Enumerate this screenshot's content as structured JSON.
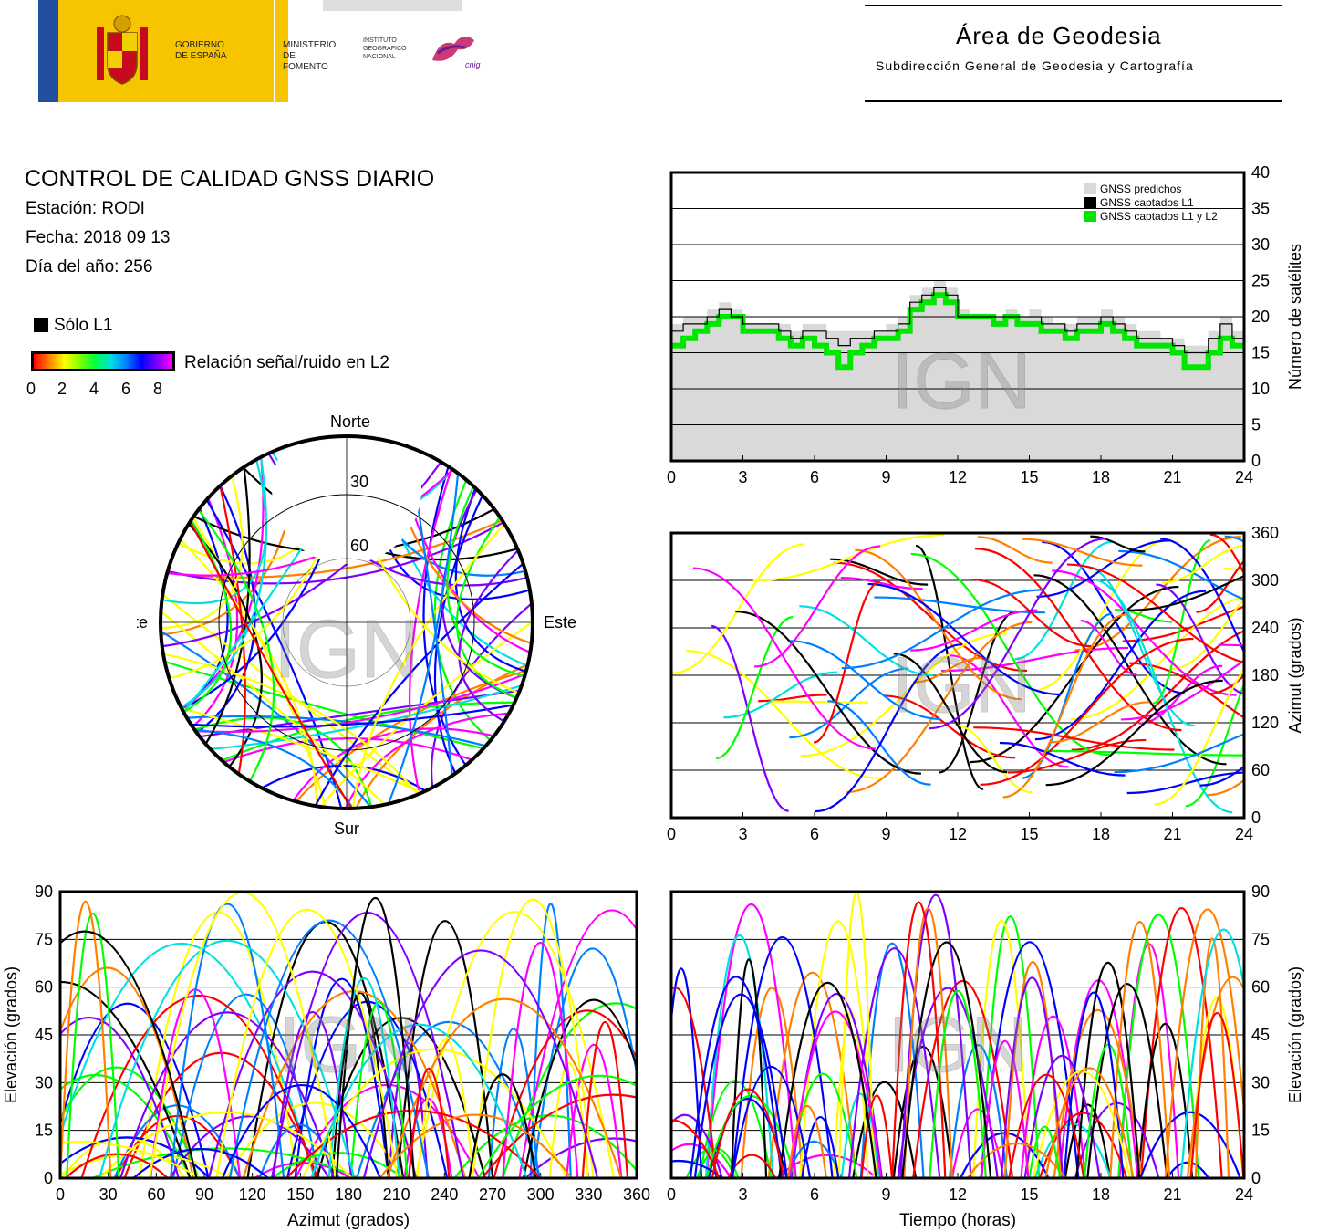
{
  "header": {
    "gov_line1": "GOBIERNO",
    "gov_line2": "DE ESPAÑA",
    "min_line1": "MINISTERIO",
    "min_line2": "DE FOMENTO",
    "inst_line1": "INSTITUTO",
    "inst_line2": "GEOGRÁFICO",
    "inst_line3": "NACIONAL",
    "cnig": "cnig",
    "area_title": "Área de Geodesia",
    "area_subtitle": "Subdirección General de Geodesia y Cartografía"
  },
  "info": {
    "title": "CONTROL DE CALIDAD GNSS DIARIO",
    "station": "Estación: RODI",
    "date": "Fecha: 2018 09 13",
    "doy": "Día del año: 256",
    "only_l1": "Sólo L1",
    "snr_label": "Relación señal/ruido en L2",
    "snr_ticks": [
      "0",
      "2",
      "4",
      "6",
      "8"
    ]
  },
  "watermark": "IGN",
  "colors": {
    "predicted": "#d9d9d9",
    "l1": "#000000",
    "l1l2": "#00e600",
    "snr_scale": [
      "#ff0000",
      "#ff8000",
      "#ffff00",
      "#00ff00",
      "#00e0e0",
      "#0080ff",
      "#0000ff",
      "#8000ff",
      "#ff00ff"
    ]
  },
  "chart_data": [
    {
      "type": "step",
      "id": "satellites",
      "ylabel": "Número de satélites",
      "xlim": [
        0,
        24
      ],
      "ylim": [
        0,
        40
      ],
      "xticks": [
        "0",
        "3",
        "6",
        "9",
        "12",
        "15",
        "18",
        "21",
        "24"
      ],
      "yticks": [
        "0",
        "5",
        "10",
        "15",
        "20",
        "25",
        "30",
        "35",
        "40"
      ],
      "legend": [
        "GNSS predichos",
        "GNSS captados L1",
        "GNSS captados L1 y L2"
      ],
      "grid": true,
      "series": [
        {
          "name": "GNSS predichos",
          "x": [
            0,
            0.5,
            1,
            1.5,
            2,
            2.5,
            3,
            3.5,
            4,
            4.5,
            5,
            5.5,
            6,
            6.5,
            7,
            7.5,
            8,
            8.5,
            9,
            9.5,
            10,
            10.5,
            11,
            11.5,
            12,
            12.5,
            13,
            13.5,
            14,
            14.5,
            15,
            15.5,
            16,
            16.5,
            17,
            17.5,
            18,
            18.5,
            19,
            19.5,
            20,
            20.5,
            21,
            21.5,
            22,
            22.5,
            23,
            23.5,
            24
          ],
          "y": [
            19,
            20,
            20,
            21,
            22,
            21,
            19,
            19,
            19,
            19,
            18,
            19,
            19,
            18,
            18,
            18,
            18,
            18,
            19,
            20,
            23,
            24,
            25,
            24,
            21,
            20,
            20,
            20,
            21,
            20,
            21,
            20,
            19,
            19,
            20,
            20,
            21,
            20,
            19,
            18,
            18,
            17,
            17,
            16,
            16,
            18,
            20,
            18,
            18
          ]
        },
        {
          "name": "GNSS captados L1",
          "x": [
            0,
            0.5,
            1,
            1.5,
            2,
            2.5,
            3,
            3.5,
            4,
            4.5,
            5,
            5.5,
            6,
            6.5,
            7,
            7.5,
            8,
            8.5,
            9,
            9.5,
            10,
            10.5,
            11,
            11.5,
            12,
            12.5,
            13,
            13.5,
            14,
            14.5,
            15,
            15.5,
            16,
            16.5,
            17,
            17.5,
            18,
            18.5,
            19,
            19.5,
            20,
            20.5,
            21,
            21.5,
            22,
            22.5,
            23,
            23.5,
            24
          ],
          "y": [
            18,
            19,
            19,
            20,
            21,
            20,
            19,
            19,
            19,
            18,
            17,
            18,
            18,
            17,
            16,
            17,
            17,
            18,
            18,
            19,
            22,
            23,
            24,
            23,
            20,
            20,
            20,
            20,
            20,
            20,
            20,
            19,
            19,
            18,
            19,
            19,
            20,
            19,
            18,
            17,
            17,
            17,
            16,
            15,
            15,
            17,
            19,
            17,
            17
          ]
        },
        {
          "name": "GNSS captados L1 y L2",
          "x": [
            0,
            0.5,
            1,
            1.5,
            2,
            2.5,
            3,
            3.5,
            4,
            4.5,
            5,
            5.5,
            6,
            6.5,
            7,
            7.5,
            8,
            8.5,
            9,
            9.5,
            10,
            10.5,
            11,
            11.5,
            12,
            12.5,
            13,
            13.5,
            14,
            14.5,
            15,
            15.5,
            16,
            16.5,
            17,
            17.5,
            18,
            18.5,
            19,
            19.5,
            20,
            20.5,
            21,
            21.5,
            22,
            22.5,
            23,
            23.5,
            24
          ],
          "y": [
            16,
            17,
            18,
            19,
            20,
            20,
            18,
            18,
            18,
            17,
            16,
            17,
            16,
            15,
            13,
            15,
            16,
            17,
            17,
            18,
            21,
            22,
            23,
            22,
            20,
            20,
            20,
            19,
            20,
            19,
            19,
            18,
            18,
            17,
            18,
            18,
            19,
            18,
            17,
            16,
            16,
            16,
            15,
            13,
            13,
            15,
            17,
            16,
            16
          ]
        }
      ]
    },
    {
      "type": "scatter",
      "id": "skyplot",
      "labels": {
        "north": "Norte",
        "south": "Sur",
        "west": "Oeste",
        "east": "Este"
      },
      "rings": [
        "30",
        "60"
      ],
      "grid": true
    },
    {
      "type": "scatter",
      "id": "azimuth-time",
      "ylabel": "Azimut (grados)",
      "xlim": [
        0,
        24
      ],
      "ylim": [
        0,
        360
      ],
      "xticks": [
        "0",
        "3",
        "6",
        "9",
        "12",
        "15",
        "18",
        "21",
        "24"
      ],
      "yticks": [
        "0",
        "60",
        "120",
        "180",
        "240",
        "300",
        "360"
      ],
      "grid": true
    },
    {
      "type": "scatter",
      "id": "elevation-azimuth",
      "xlabel": "Azimut (grados)",
      "ylabel": "Elevación (grados)",
      "xlim": [
        0,
        360
      ],
      "ylim": [
        0,
        90
      ],
      "xticks": [
        "0",
        "30",
        "60",
        "90",
        "120",
        "150",
        "180",
        "210",
        "240",
        "270",
        "300",
        "330",
        "360"
      ],
      "yticks": [
        "0",
        "15",
        "30",
        "45",
        "60",
        "75",
        "90"
      ],
      "grid": true
    },
    {
      "type": "scatter",
      "id": "elevation-time",
      "xlabel": "Tiempo (horas)",
      "ylabel": "Elevación (grados)",
      "xlim": [
        0,
        24
      ],
      "ylim": [
        0,
        90
      ],
      "xticks": [
        "0",
        "3",
        "6",
        "9",
        "12",
        "15",
        "18",
        "21",
        "24"
      ],
      "yticks": [
        "0",
        "15",
        "30",
        "45",
        "60",
        "75",
        "90"
      ],
      "grid": true
    }
  ]
}
